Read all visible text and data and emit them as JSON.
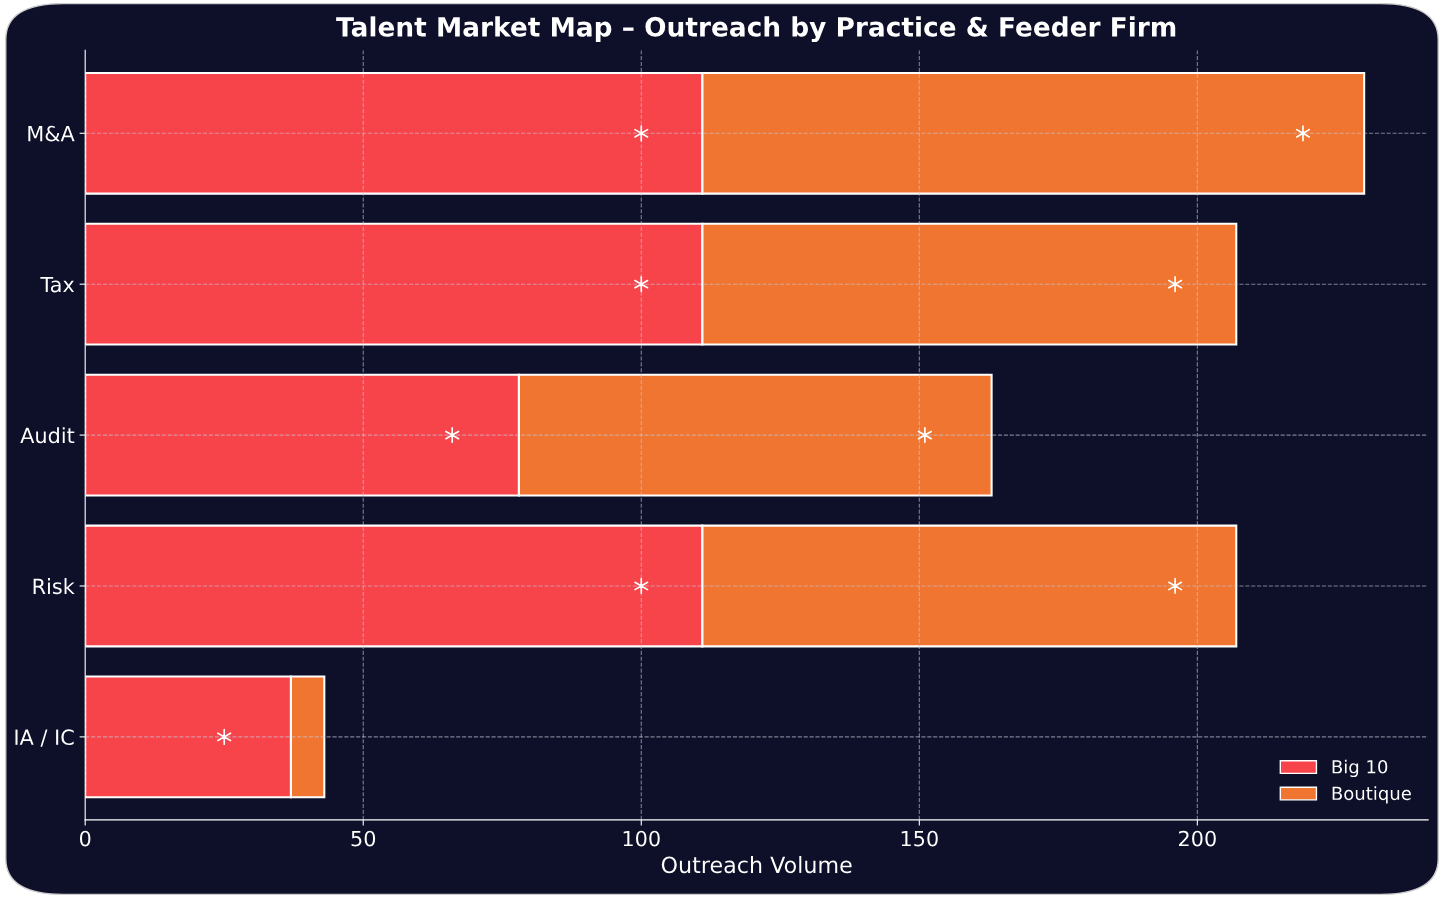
{
  "chart_data": {
    "type": "bar",
    "orientation": "horizontal",
    "stacked": true,
    "title": "Talent Market Map – Outreach by Practice & Feeder Firm",
    "xlabel": "Outreach Volume",
    "categories": [
      "M&A",
      "Tax",
      "Audit",
      "Risk",
      "IA / IC"
    ],
    "series": [
      {
        "name": "Big 10",
        "color": "#f7434a",
        "values": [
          111,
          111,
          78,
          111,
          37
        ]
      },
      {
        "name": "Boutique",
        "color": "#f07530",
        "values": [
          119,
          96,
          85,
          96,
          6
        ]
      },
      {
        "type": "scatter",
        "color": "#ffffff",
        "marker": "cross",
        "values": [
          100,
          100,
          66,
          100,
          25
        ]
      },
      {
        "type": "scatter",
        "color": "#ffffff",
        "marker": "cross",
        "values": [
          219,
          196,
          151,
          196,
          null
        ]
      }
    ],
    "xlim": [
      0,
      241.5
    ],
    "xticks": [
      0,
      50,
      100,
      150,
      200
    ],
    "grid": true,
    "legend": "bottom right"
  }
}
